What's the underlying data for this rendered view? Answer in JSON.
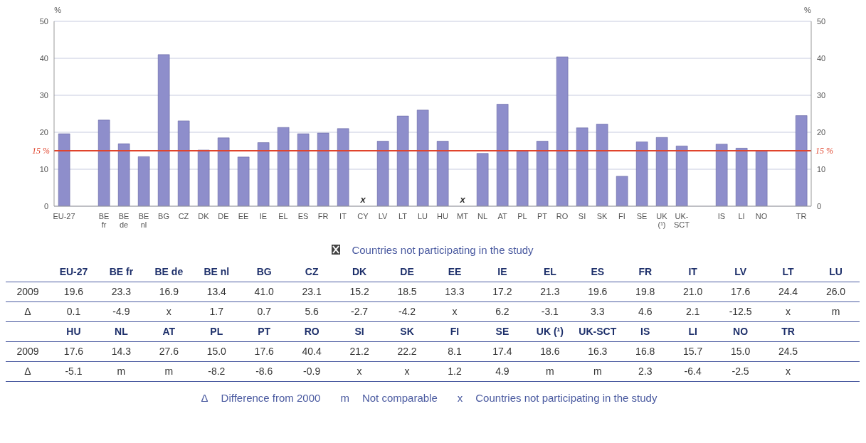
{
  "chart_data": {
    "type": "bar",
    "ylabel": "%",
    "y2label": "%",
    "categories": [
      "EU-27",
      null,
      "BE fr",
      "BE de",
      "BE nl",
      "BG",
      "CZ",
      "DK",
      "DE",
      "EE",
      "IE",
      "EL",
      "ES",
      "FR",
      "IT",
      "CY",
      "LV",
      "LT",
      "LU",
      "HU",
      "MT",
      "NL",
      "AT",
      "PL",
      "PT",
      "RO",
      "SI",
      "SK",
      "FI",
      "SE",
      "UK (¹)",
      "UK-SCT",
      null,
      "IS",
      "LI",
      "NO",
      null,
      "TR"
    ],
    "series": [
      {
        "color": "#8e8ecb",
        "values": [
          19.6,
          null,
          23.3,
          16.9,
          13.4,
          41.0,
          23.1,
          15.2,
          18.5,
          13.3,
          17.2,
          21.3,
          19.6,
          19.8,
          21.0,
          null,
          17.6,
          24.4,
          26.0,
          17.6,
          null,
          14.3,
          27.6,
          15.0,
          17.6,
          40.4,
          21.2,
          22.2,
          8.1,
          17.4,
          18.6,
          16.3,
          null,
          16.8,
          15.7,
          15.0,
          null,
          24.5
        ]
      }
    ],
    "ylim": [
      0,
      50
    ],
    "yticks": [
      0,
      10,
      20,
      30,
      40,
      50
    ],
    "y2lim": [
      0,
      50
    ],
    "y2ticks": [
      0,
      10,
      20,
      30,
      40,
      50
    ],
    "grid": "y",
    "ref_lines": [
      {
        "axis": "y",
        "value": 15,
        "label": "15 %",
        "color": "#e0442c"
      }
    ],
    "annotations": [
      "Countries not participating in the study",
      "2009",
      "Δ",
      "19.6",
      "23.3",
      "16.9",
      "13.4",
      "41.0",
      "23.1",
      "15.2",
      "18.5",
      "13.3",
      "17.2",
      "21.3",
      "19.6",
      "19.8",
      "21.0",
      "17.6",
      "24.4",
      "26.0",
      "17.6",
      "14.3",
      "27.6",
      "15.0",
      "17.6",
      "40.4",
      "21.2",
      "22.2",
      "8.1",
      "17.4",
      "18.6",
      "16.3",
      "16.8",
      "15.7",
      "15.0",
      "24.5",
      "0.1",
      "-4.9",
      "x",
      "1.7",
      "0.7",
      "5.6",
      "-2.7",
      "-4.2",
      "x",
      "6.2",
      "-3.1",
      "3.3",
      "4.6",
      "2.1",
      "-12.5",
      "x",
      "m",
      "-5.1",
      "m",
      "m",
      "-8.2",
      "-8.6",
      "-0.9",
      "x",
      "x",
      "1.2",
      "4.9",
      "m",
      "m",
      "2.3",
      "-6.4",
      "-2.5",
      "x",
      "Δ",
      "Difference from 2000",
      "m",
      "Not comparable",
      "x",
      "Countries not participating in the study",
      "x",
      "x"
    ]
  }
}
